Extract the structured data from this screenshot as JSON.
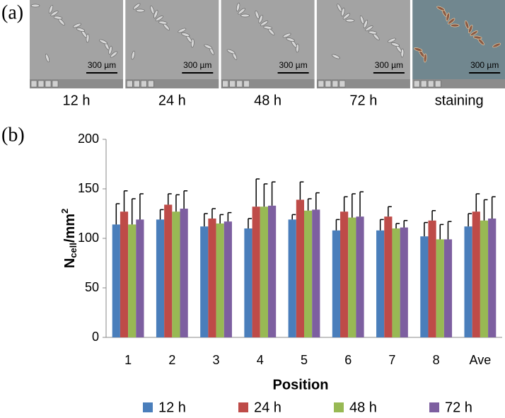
{
  "panel_a": {
    "label": "(a)",
    "images": [
      {
        "caption": "12 h",
        "scale_bar": "300 µm"
      },
      {
        "caption": "24 h",
        "scale_bar": "300 µm"
      },
      {
        "caption": "48 h",
        "scale_bar": "300 µm"
      },
      {
        "caption": "72 h",
        "scale_bar": "300 µm"
      },
      {
        "caption": "staining",
        "scale_bar": "300 µm"
      }
    ]
  },
  "chart_data": {
    "type": "bar",
    "panel_label": "(b)",
    "y_label_parts": [
      "N",
      "cell",
      "/mm",
      "2"
    ],
    "x_label": "Position",
    "categories": [
      "1",
      "2",
      "3",
      "4",
      "5",
      "6",
      "7",
      "8",
      "Ave"
    ],
    "ylim": [
      0,
      200
    ],
    "yticks": [
      0,
      50,
      100,
      150,
      200
    ],
    "series": [
      {
        "name": "12 h",
        "color": "#4a7ebb",
        "values": [
          114,
          119,
          112,
          110,
          119,
          108,
          108,
          102,
          112
        ],
        "errors": [
          21,
          10,
          13,
          10,
          5,
          11,
          11,
          14,
          13
        ]
      },
      {
        "name": "24 h",
        "color": "#be4b48",
        "values": [
          127,
          134,
          120,
          132,
          139,
          127,
          122,
          118,
          127
        ],
        "errors": [
          21,
          11,
          10,
          28,
          18,
          15,
          10,
          10,
          18
        ]
      },
      {
        "name": "48 h",
        "color": "#98b954",
        "values": [
          114,
          127,
          115,
          132,
          128,
          121,
          110,
          99,
          118
        ],
        "errors": [
          26,
          17,
          9,
          23,
          12,
          24,
          5,
          15,
          21
        ]
      },
      {
        "name": "72 h",
        "color": "#7d5fa0",
        "values": [
          119,
          130,
          117,
          133,
          129,
          122,
          111,
          99,
          120
        ],
        "errors": [
          26,
          18,
          9,
          24,
          17,
          25,
          7,
          18,
          22
        ]
      }
    ],
    "legend": "bottom"
  }
}
